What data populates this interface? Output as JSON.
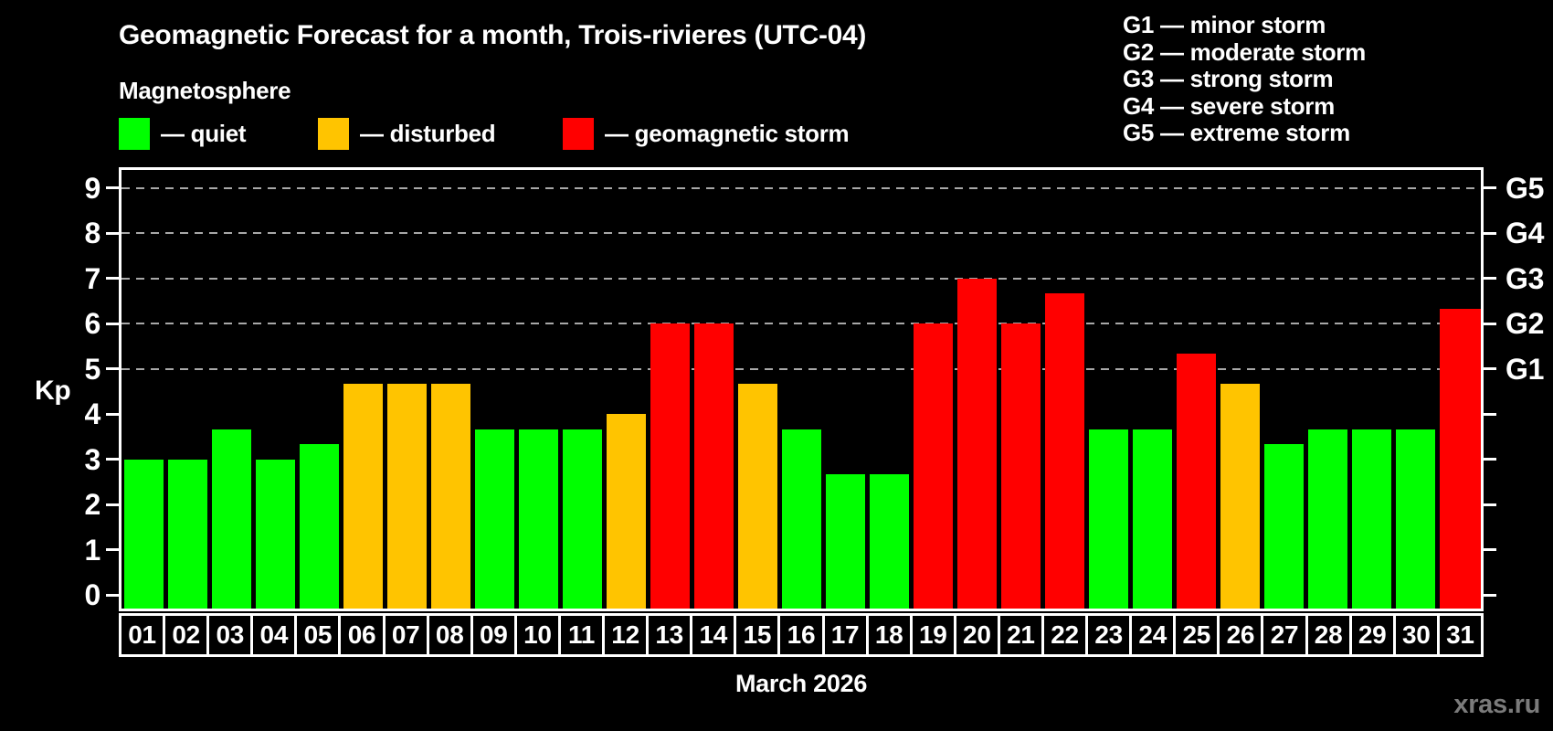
{
  "legend": {
    "items": [
      {
        "key": "quiet",
        "label": "— quiet",
        "color": "#00ff00"
      },
      {
        "key": "disturbed",
        "label": "— disturbed",
        "color": "#ffc400"
      },
      {
        "key": "storm",
        "label": "— geomagnetic storm",
        "color": "#ff0000"
      }
    ]
  },
  "storm_scale": {
    "lines": [
      "G1 — minor storm",
      "G2 — moderate storm",
      "G3 — strong storm",
      "G4 — severe storm",
      "G5 — extreme storm"
    ]
  },
  "watermark": "xras.ru",
  "chart_data": {
    "type": "bar",
    "title": "Geomagnetic Forecast for a month, Trois-rivieres (UTC-04)",
    "subtitle": "Magnetosphere",
    "xlabel": "March 2026",
    "ylabel": "Kp",
    "ylim": [
      -0.3,
      9.4
    ],
    "yticks": [
      0,
      1,
      2,
      3,
      4,
      5,
      6,
      7,
      8,
      9
    ],
    "gridlines_at": [
      5,
      6,
      7,
      8,
      9
    ],
    "grid": "dashed",
    "legend_position": "top-left",
    "right_axis": [
      {
        "kp": 5,
        "label": "G1"
      },
      {
        "kp": 6,
        "label": "G2"
      },
      {
        "kp": 7,
        "label": "G3"
      },
      {
        "kp": 8,
        "label": "G4"
      },
      {
        "kp": 9,
        "label": "G5"
      }
    ],
    "categories": [
      "01",
      "02",
      "03",
      "04",
      "05",
      "06",
      "07",
      "08",
      "09",
      "10",
      "11",
      "12",
      "13",
      "14",
      "15",
      "16",
      "17",
      "18",
      "19",
      "20",
      "21",
      "22",
      "23",
      "24",
      "25",
      "26",
      "27",
      "28",
      "29",
      "30",
      "31"
    ],
    "values": [
      3.0,
      3.0,
      3.67,
      3.0,
      3.33,
      4.67,
      4.67,
      4.67,
      3.67,
      3.67,
      3.67,
      4.0,
      6.0,
      6.0,
      4.67,
      3.67,
      2.67,
      2.67,
      6.0,
      7.0,
      6.0,
      6.67,
      3.67,
      3.67,
      5.33,
      4.67,
      3.33,
      3.67,
      3.67,
      3.67,
      6.33
    ],
    "statuses": [
      "quiet",
      "quiet",
      "quiet",
      "quiet",
      "quiet",
      "disturbed",
      "disturbed",
      "disturbed",
      "quiet",
      "quiet",
      "quiet",
      "disturbed",
      "storm",
      "storm",
      "disturbed",
      "quiet",
      "quiet",
      "quiet",
      "storm",
      "storm",
      "storm",
      "storm",
      "quiet",
      "quiet",
      "storm",
      "disturbed",
      "quiet",
      "quiet",
      "quiet",
      "quiet",
      "storm"
    ],
    "colors": {
      "quiet": "#00ff00",
      "disturbed": "#ffc400",
      "storm": "#ff0000"
    }
  }
}
